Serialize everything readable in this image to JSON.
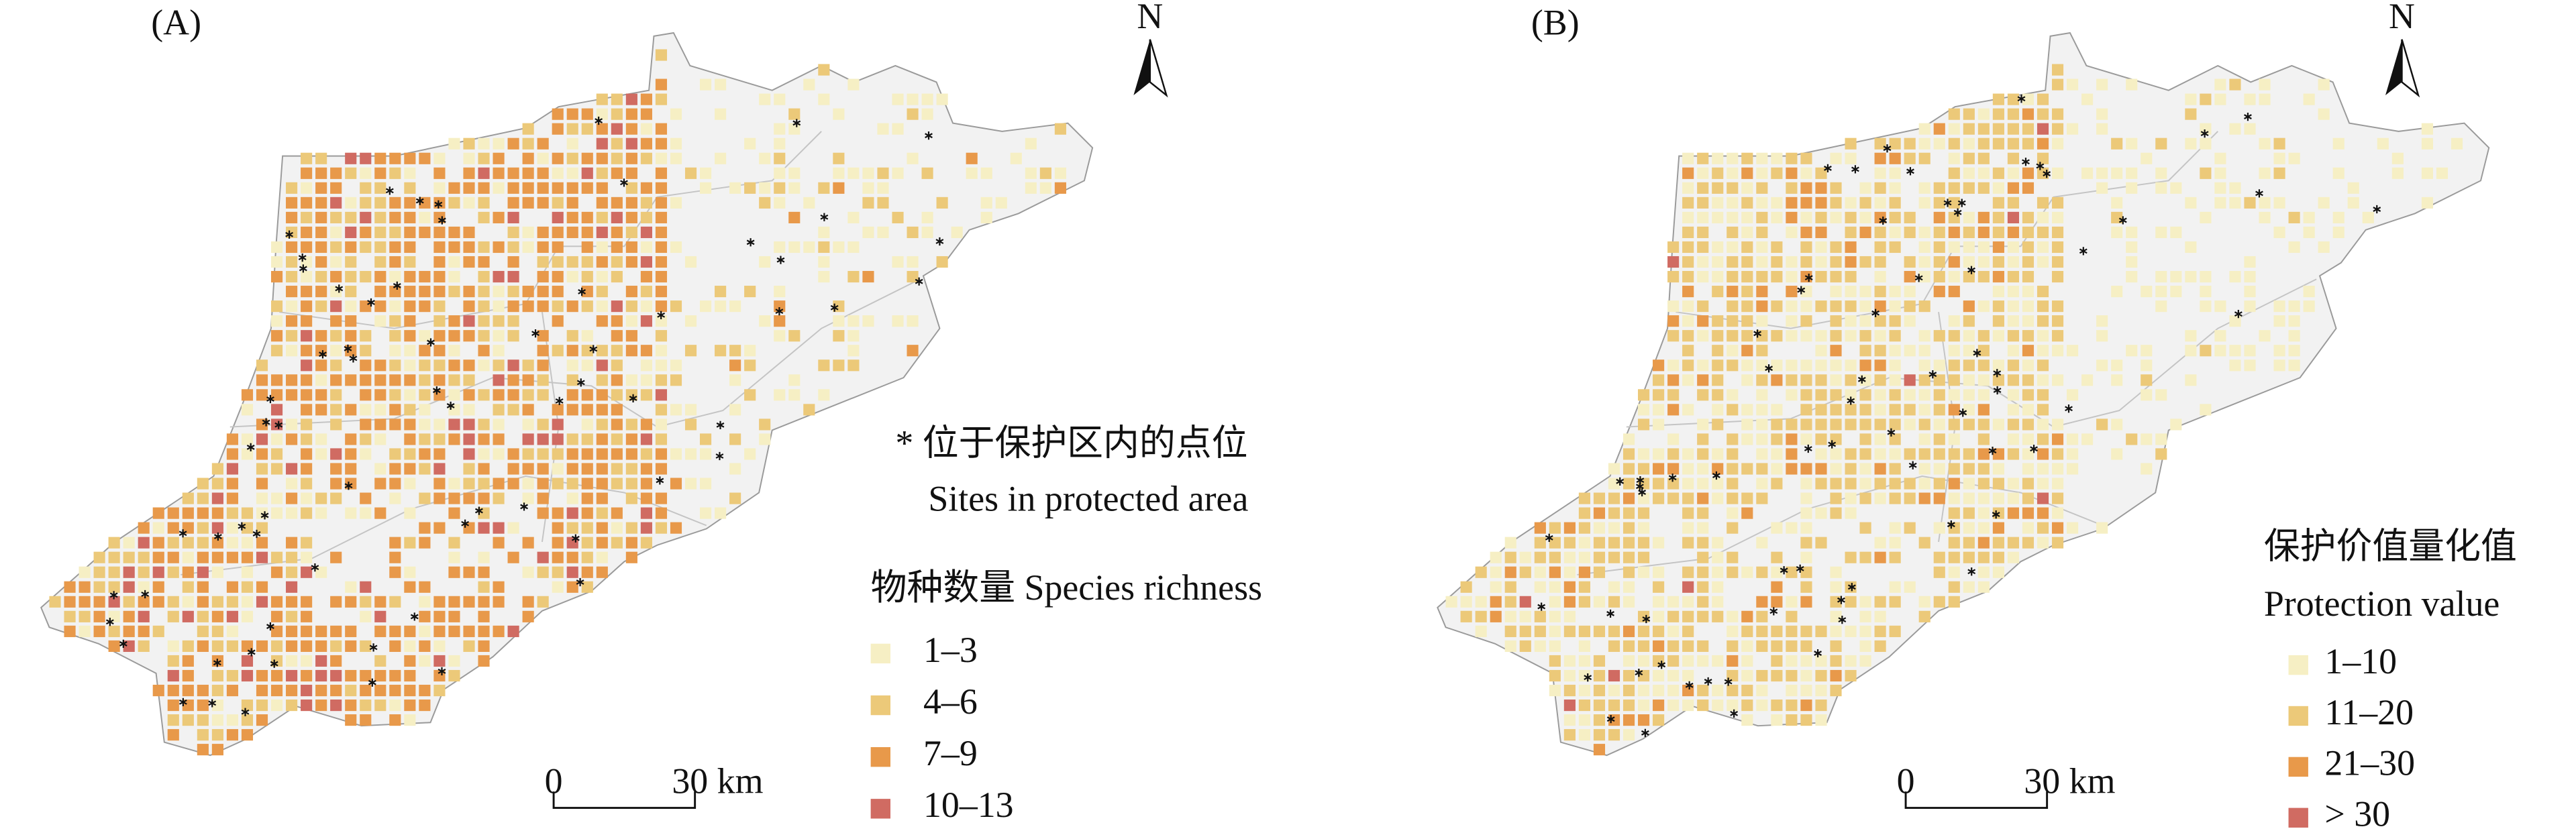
{
  "panels": [
    {
      "label": "(A)",
      "north": "N",
      "annotation_zh": "* 位于保护区内的点位",
      "annotation_en": "Sites in protected area",
      "legend": {
        "title": "物种数量 Species richness",
        "items": [
          {
            "label": "1–3",
            "color": "#f6efc4"
          },
          {
            "label": "4–6",
            "color": "#ecc979"
          },
          {
            "label": "7–9",
            "color": "#e8994a"
          },
          {
            "label": "10–13",
            "color": "#d06b62"
          }
        ]
      },
      "scale_bar": {
        "start": "0",
        "end": "30 km"
      }
    },
    {
      "label": "(B)",
      "north": "N",
      "legend": {
        "title_zh": "保护价值量化值",
        "title_en": "Protection value",
        "items": [
          {
            "label": "1–10",
            "color": "#f6efc4"
          },
          {
            "label": "11–20",
            "color": "#ecc979"
          },
          {
            "label": "21–30",
            "color": "#e8994a"
          },
          {
            "label": "> 30",
            "color": "#d06b62"
          }
        ]
      },
      "scale_bar": {
        "start": "0",
        "end": "30 km"
      }
    }
  ]
}
